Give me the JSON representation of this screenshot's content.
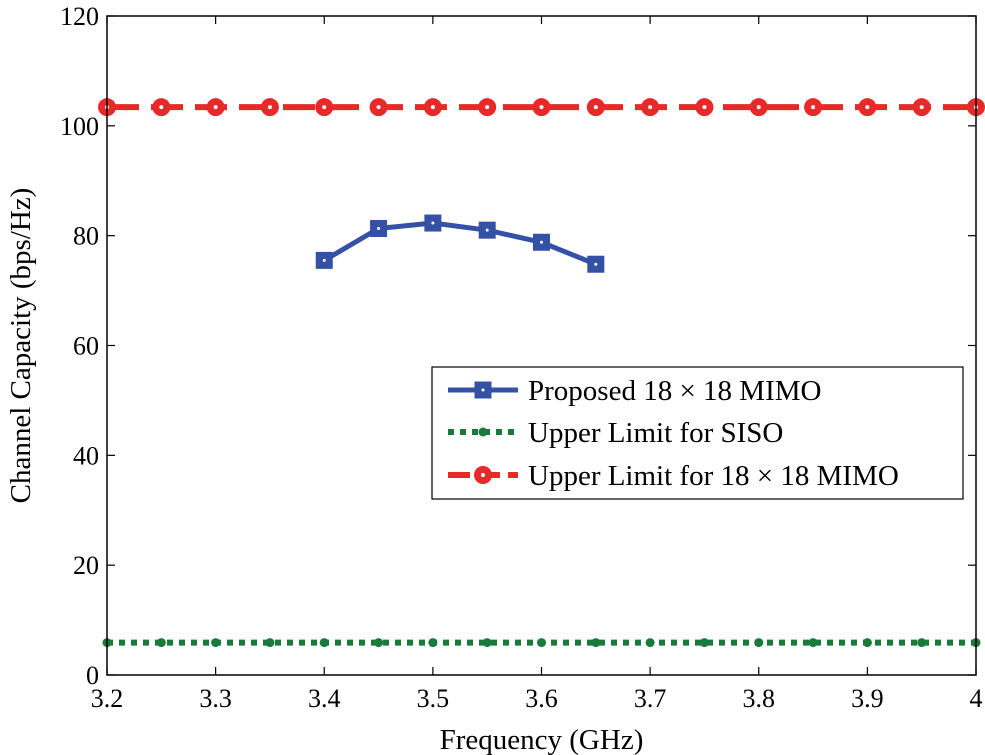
{
  "chart_data": {
    "type": "line",
    "title": "",
    "xlabel": "Frequency (GHz)",
    "ylabel": "Channel Capacity (bps/Hz)",
    "xlim": [
      3.2,
      4.0
    ],
    "ylim": [
      0,
      120
    ],
    "xticks": [
      "3.2",
      "3.3",
      "3.4",
      "3.5",
      "3.6",
      "3.7",
      "3.8",
      "3.9",
      "4"
    ],
    "yticks": [
      "0",
      "20",
      "40",
      "60",
      "80",
      "100",
      "120"
    ],
    "grid": false,
    "legend_position": "right",
    "series": [
      {
        "name": "Proposed 18 × 18 MIMO",
        "color": "#3451a6",
        "style": "solid",
        "marker": "square",
        "x": [
          3.4,
          3.45,
          3.5,
          3.55,
          3.6,
          3.65
        ],
        "y": [
          75.5,
          81.3,
          82.3,
          81.0,
          78.8,
          74.8
        ]
      },
      {
        "name": "Upper Limit for SISO",
        "color": "#1a7a3c",
        "style": "dotted",
        "marker": "dot",
        "x": [
          3.2,
          3.25,
          3.3,
          3.35,
          3.4,
          3.45,
          3.5,
          3.55,
          3.6,
          3.65,
          3.7,
          3.75,
          3.8,
          3.85,
          3.9,
          3.95,
          4.0
        ],
        "y": [
          5.9,
          5.9,
          5.9,
          5.9,
          5.9,
          5.9,
          5.9,
          5.9,
          5.9,
          5.9,
          5.9,
          5.9,
          5.9,
          5.9,
          5.9,
          5.9,
          5.9
        ]
      },
      {
        "name": "Upper Limit for 18 × 18 MIMO",
        "color": "#e8292a",
        "style": "dashed",
        "marker": "circle",
        "x": [
          3.2,
          3.25,
          3.3,
          3.35,
          3.4,
          3.45,
          3.5,
          3.55,
          3.6,
          3.65,
          3.7,
          3.75,
          3.8,
          3.85,
          3.9,
          3.95,
          4.0
        ],
        "y": [
          103.4,
          103.4,
          103.4,
          103.4,
          103.4,
          103.4,
          103.4,
          103.4,
          103.4,
          103.4,
          103.4,
          103.4,
          103.4,
          103.4,
          103.4,
          103.4,
          103.4
        ]
      }
    ]
  }
}
